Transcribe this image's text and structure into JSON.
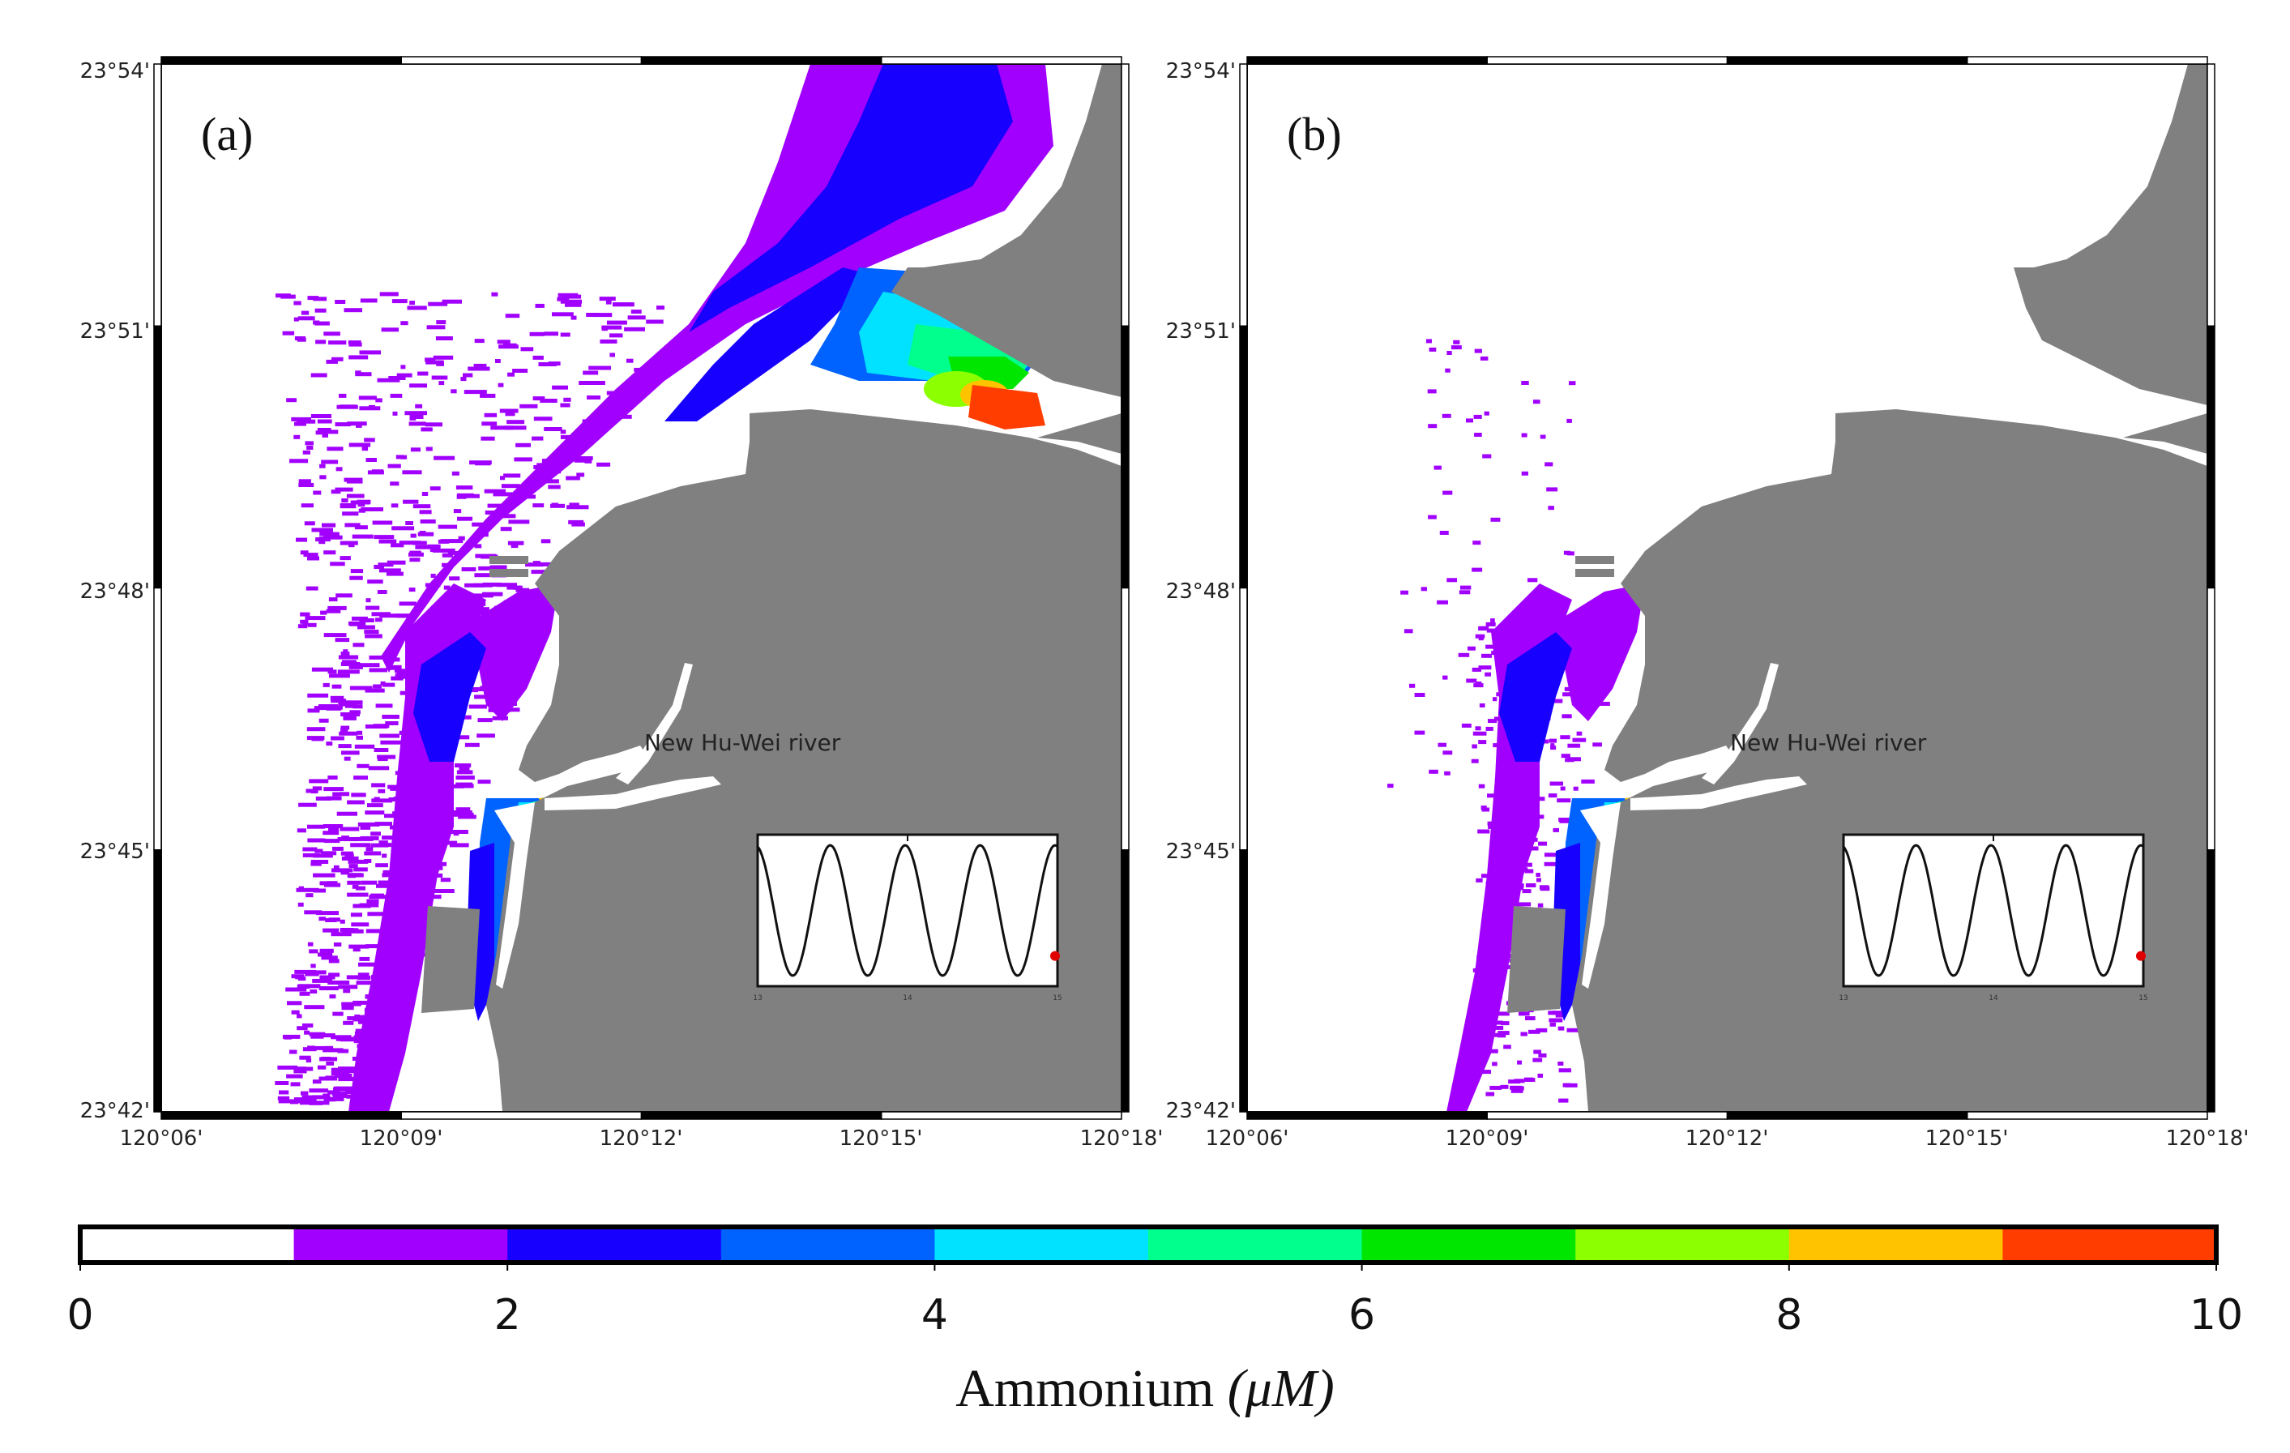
{
  "panels": [
    {
      "label": "(a)",
      "river_label": "New Hu-Wei river",
      "lat_ticks": [
        "23°54'",
        "23°51'",
        "23°48'",
        "23°45'",
        "23°42'"
      ],
      "lon_ticks": [
        "120°06'",
        "120°09'",
        "120°12'",
        "120°15'",
        "120°18'"
      ],
      "inset_ticks": [
        "13",
        "14",
        "15"
      ]
    },
    {
      "label": "(b)",
      "river_label": "New Hu-Wei river",
      "lat_ticks": [
        "23°54'",
        "23°51'",
        "23°48'",
        "23°45'",
        "23°42'"
      ],
      "lon_ticks": [
        "120°06'",
        "120°09'",
        "120°12'",
        "120°15'",
        "120°18'"
      ],
      "inset_ticks": [
        "13",
        "14",
        "15"
      ]
    }
  ],
  "colorbar": {
    "title": "Ammonium",
    "unit": "(μM)",
    "ticks": [
      "0",
      "2",
      "4",
      "6",
      "8",
      "10"
    ],
    "range": [
      0,
      10
    ],
    "colors": [
      "#ffffff",
      "#a100ff",
      "#1800ff",
      "#0062ff",
      "#00e2ff",
      "#00ff8c",
      "#00e600",
      "#8cff00",
      "#ffc300",
      "#ff3d00"
    ]
  },
  "land_color": "#808080",
  "concentration_colors": {
    "purple": "#a100ff",
    "blue": "#1800ff",
    "lightblue": "#0062ff",
    "cyan": "#00e2ff",
    "teal": "#00ff8c",
    "green": "#00e600",
    "yellowgreen": "#8cff00",
    "orange": "#ffc300",
    "red": "#ff3d00"
  }
}
